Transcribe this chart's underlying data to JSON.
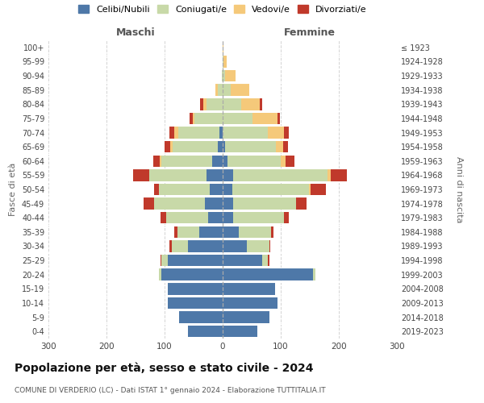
{
  "age_groups": [
    "0-4",
    "5-9",
    "10-14",
    "15-19",
    "20-24",
    "25-29",
    "30-34",
    "35-39",
    "40-44",
    "45-49",
    "50-54",
    "55-59",
    "60-64",
    "65-69",
    "70-74",
    "75-79",
    "80-84",
    "85-89",
    "90-94",
    "95-99",
    "100+"
  ],
  "birth_years": [
    "2019-2023",
    "2014-2018",
    "2009-2013",
    "2004-2008",
    "1999-2003",
    "1994-1998",
    "1989-1993",
    "1984-1988",
    "1979-1983",
    "1974-1978",
    "1969-1973",
    "1964-1968",
    "1959-1963",
    "1954-1958",
    "1949-1953",
    "1944-1948",
    "1939-1943",
    "1934-1938",
    "1929-1933",
    "1924-1928",
    "≤ 1923"
  ],
  "maschi": {
    "celibi": [
      60,
      75,
      95,
      95,
      105,
      95,
      60,
      40,
      25,
      30,
      22,
      28,
      18,
      8,
      5,
      0,
      0,
      0,
      0,
      0,
      0
    ],
    "coniugati": [
      0,
      0,
      0,
      0,
      5,
      10,
      28,
      38,
      72,
      88,
      88,
      98,
      88,
      78,
      72,
      48,
      28,
      8,
      2,
      0,
      0
    ],
    "vedovi": [
      0,
      0,
      0,
      0,
      0,
      0,
      0,
      0,
      0,
      0,
      0,
      0,
      2,
      4,
      6,
      4,
      6,
      4,
      0,
      0,
      0
    ],
    "divorziati": [
      0,
      0,
      0,
      0,
      0,
      2,
      3,
      5,
      10,
      18,
      8,
      28,
      12,
      10,
      8,
      5,
      5,
      0,
      0,
      0,
      0
    ]
  },
  "femmine": {
    "nubili": [
      60,
      80,
      95,
      90,
      155,
      68,
      42,
      28,
      18,
      18,
      16,
      18,
      8,
      4,
      0,
      0,
      0,
      0,
      0,
      0,
      0
    ],
    "coniugate": [
      0,
      0,
      0,
      0,
      5,
      10,
      38,
      55,
      88,
      108,
      132,
      162,
      92,
      88,
      78,
      52,
      32,
      14,
      4,
      2,
      0
    ],
    "vedove": [
      0,
      0,
      0,
      0,
      0,
      0,
      0,
      0,
      0,
      0,
      4,
      6,
      8,
      12,
      28,
      42,
      32,
      32,
      18,
      5,
      2
    ],
    "divorziate": [
      0,
      0,
      0,
      0,
      0,
      2,
      2,
      4,
      8,
      18,
      26,
      28,
      16,
      8,
      8,
      4,
      4,
      0,
      0,
      0,
      0
    ]
  },
  "colors": {
    "celibi": "#4e78a8",
    "coniugati": "#c8d9a8",
    "vedovi": "#f5c97a",
    "divorziati": "#c0392b"
  },
  "legend_labels": [
    "Celibi/Nubili",
    "Coniugati/e",
    "Vedovi/e",
    "Divorziati/e"
  ],
  "xlim": 300,
  "title": "Popolazione per età, sesso e stato civile - 2024",
  "subtitle": "COMUNE DI VERDERIO (LC) - Dati ISTAT 1° gennaio 2024 - Elaborazione TUTTITALIA.IT",
  "ylabel_left": "Fasce di età",
  "ylabel_right": "Anni di nascita",
  "xlabel_left": "Maschi",
  "xlabel_right": "Femmine",
  "bg_color": "#f5f5f0"
}
